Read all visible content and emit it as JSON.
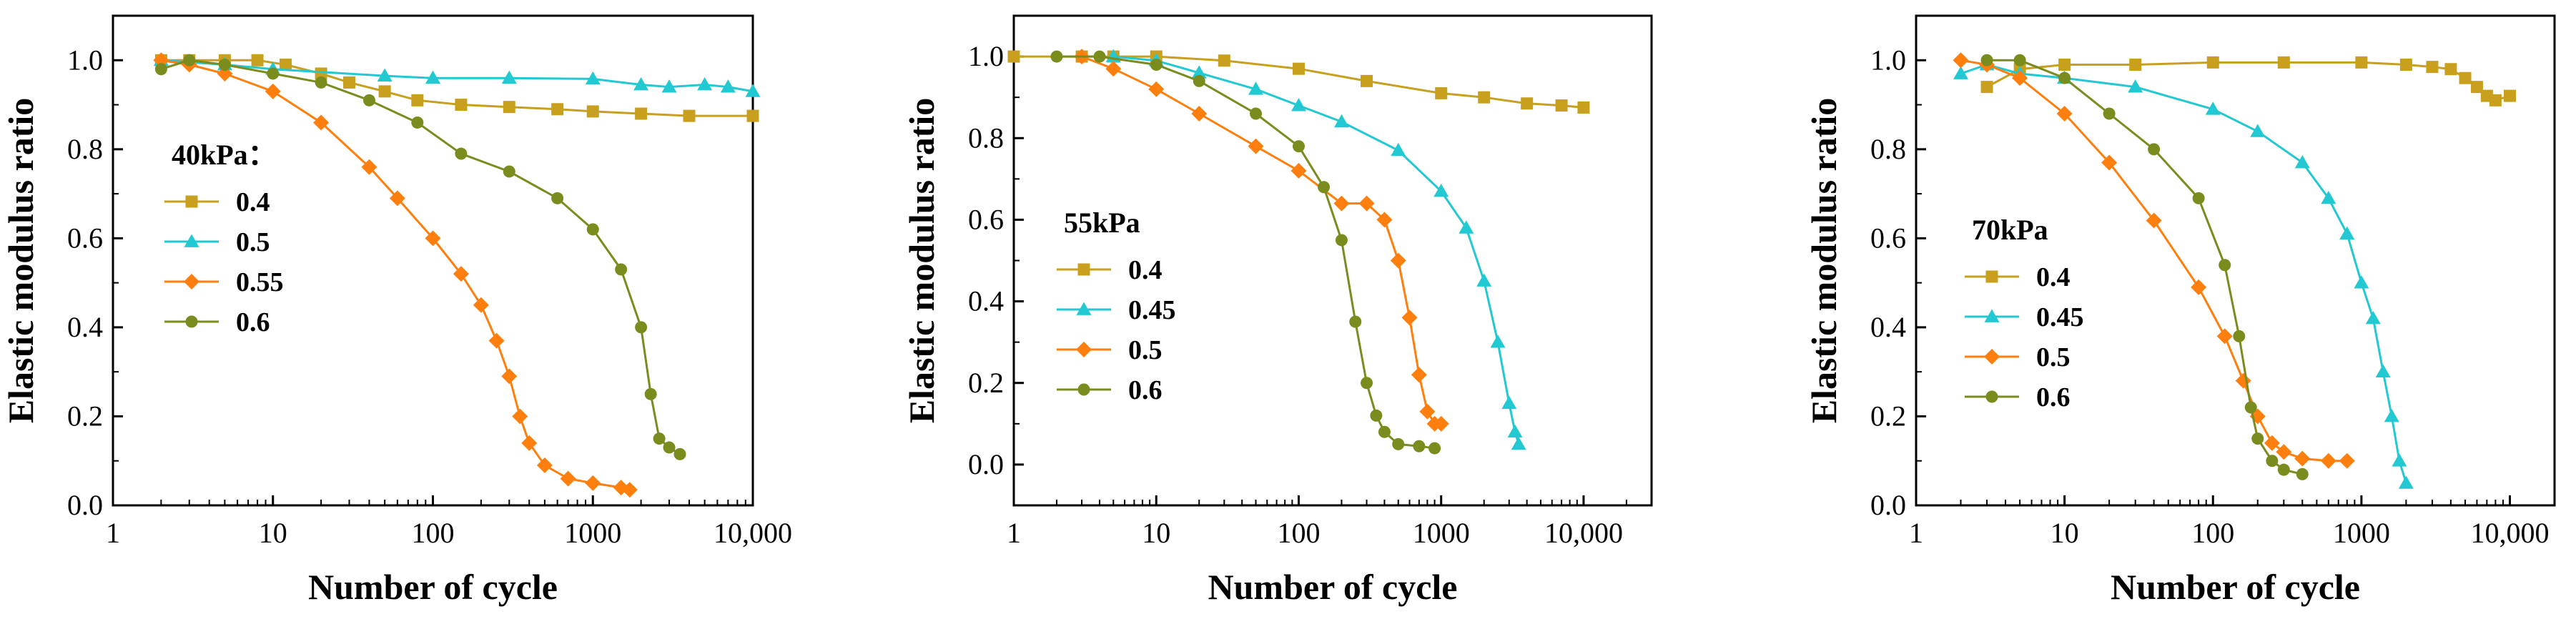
{
  "colors": {
    "0.4": "#c8a01e",
    "0.45": "#22c8d2",
    "0.5": "#ff7f0e",
    "0.55": "#ff7f0e",
    "0.6": "#7a8c1e"
  },
  "chart_data": [
    {
      "type": "line",
      "panel": "40kPa",
      "legend_title": "40kPa：",
      "xlabel": "Number of cycle",
      "ylabel": "Elastic modulus ratio",
      "xscale": "log",
      "xlim": [
        1,
        10000
      ],
      "ylim": [
        0.0,
        1.1
      ],
      "xticks": [
        1,
        10,
        100,
        1000,
        10000
      ],
      "xtick_labels": [
        "1",
        "10",
        "100",
        "1000",
        "10,000"
      ],
      "yticks": [
        0.0,
        0.2,
        0.4,
        0.6,
        0.8,
        1.0
      ],
      "ytick_labels": [
        "0.0",
        "0.2",
        "0.4",
        "0.6",
        "0.8",
        "1.0"
      ],
      "legend_position": "middle-left",
      "series": [
        {
          "name": "0.4",
          "marker": "square",
          "color": "#c8a01e",
          "x": [
            2,
            3,
            5,
            8,
            12,
            20,
            30,
            50,
            80,
            150,
            300,
            600,
            1000,
            2000,
            4000,
            10000
          ],
          "y": [
            1.0,
            1.0,
            1.0,
            1.0,
            0.99,
            0.97,
            0.95,
            0.93,
            0.91,
            0.9,
            0.895,
            0.89,
            0.885,
            0.88,
            0.875,
            0.875
          ]
        },
        {
          "name": "0.5",
          "marker": "triangle",
          "color": "#22c8d2",
          "x": [
            2,
            5,
            10,
            50,
            100,
            300,
            1000,
            2000,
            3000,
            5000,
            7000,
            10000
          ],
          "y": [
            1.0,
            0.99,
            0.98,
            0.965,
            0.96,
            0.96,
            0.958,
            0.945,
            0.94,
            0.945,
            0.94,
            0.93
          ]
        },
        {
          "name": "0.55",
          "marker": "diamond",
          "color": "#ff7f0e",
          "x": [
            2,
            3,
            5,
            10,
            20,
            40,
            60,
            100,
            150,
            200,
            250,
            300,
            350,
            400,
            500,
            700,
            1000,
            1500,
            1700
          ],
          "y": [
            1.0,
            0.99,
            0.97,
            0.93,
            0.86,
            0.76,
            0.69,
            0.6,
            0.52,
            0.45,
            0.37,
            0.29,
            0.2,
            0.14,
            0.09,
            0.06,
            0.05,
            0.04,
            0.035
          ]
        },
        {
          "name": "0.6",
          "marker": "circle",
          "color": "#7a8c1e",
          "x": [
            2,
            3,
            5,
            10,
            20,
            40,
            80,
            150,
            300,
            600,
            1000,
            1500,
            2000,
            2300,
            2600,
            3000,
            3500
          ],
          "y": [
            0.98,
            1.0,
            0.99,
            0.97,
            0.95,
            0.91,
            0.86,
            0.79,
            0.75,
            0.69,
            0.62,
            0.53,
            0.4,
            0.25,
            0.15,
            0.13,
            0.115
          ]
        }
      ]
    },
    {
      "type": "line",
      "panel": "55kPa",
      "legend_title": "55kPa",
      "xlabel": "Number of cycle",
      "ylabel": "Elastic modulus ratio",
      "xscale": "log",
      "xlim": [
        1,
        30000
      ],
      "ylim": [
        -0.1,
        1.1
      ],
      "xticks": [
        1,
        10,
        100,
        1000,
        10000
      ],
      "xtick_labels": [
        "1",
        "10",
        "100",
        "1000",
        "10,000"
      ],
      "yticks": [
        0.0,
        0.2,
        0.4,
        0.6,
        0.8,
        1.0
      ],
      "ytick_labels": [
        "0.0",
        "0.2",
        "0.4",
        "0.6",
        "0.8",
        "1.0"
      ],
      "legend_position": "lower-left",
      "series": [
        {
          "name": "0.4",
          "marker": "square",
          "color": "#c8a01e",
          "x": [
            1,
            3,
            5,
            10,
            30,
            100,
            300,
            1000,
            2000,
            4000,
            7000,
            10000
          ],
          "y": [
            1.0,
            1.0,
            1.0,
            1.0,
            0.99,
            0.97,
            0.94,
            0.91,
            0.9,
            0.885,
            0.88,
            0.875
          ]
        },
        {
          "name": "0.45",
          "marker": "triangle",
          "color": "#22c8d2",
          "x": [
            5,
            10,
            20,
            50,
            100,
            200,
            500,
            1000,
            1500,
            2000,
            2500,
            3000,
            3300,
            3500
          ],
          "y": [
            1.0,
            0.99,
            0.96,
            0.92,
            0.88,
            0.84,
            0.77,
            0.67,
            0.58,
            0.45,
            0.3,
            0.15,
            0.08,
            0.05
          ]
        },
        {
          "name": "0.5",
          "marker": "diamond",
          "color": "#ff7f0e",
          "x": [
            3,
            5,
            10,
            20,
            50,
            100,
            200,
            300,
            400,
            500,
            600,
            700,
            800,
            900,
            1000
          ],
          "y": [
            1.0,
            0.97,
            0.92,
            0.86,
            0.78,
            0.72,
            0.64,
            0.64,
            0.6,
            0.5,
            0.36,
            0.22,
            0.13,
            0.1,
            0.1
          ]
        },
        {
          "name": "0.6",
          "marker": "circle",
          "color": "#7a8c1e",
          "x": [
            2,
            4,
            10,
            20,
            50,
            100,
            150,
            200,
            250,
            300,
            350,
            400,
            500,
            700,
            900
          ],
          "y": [
            1.0,
            1.0,
            0.98,
            0.94,
            0.86,
            0.78,
            0.68,
            0.55,
            0.35,
            0.2,
            0.12,
            0.08,
            0.05,
            0.045,
            0.04
          ]
        }
      ]
    },
    {
      "type": "line",
      "panel": "70kPa",
      "legend_title": "70kPa",
      "xlabel": "Number of cycle",
      "ylabel": "Elastic modulus ratio",
      "xscale": "log",
      "xlim": [
        1,
        20000
      ],
      "ylim": [
        0.0,
        1.1
      ],
      "xticks": [
        1,
        10,
        100,
        1000,
        10000
      ],
      "xtick_labels": [
        "1",
        "10",
        "100",
        "1000",
        "10,000"
      ],
      "yticks": [
        0.0,
        0.2,
        0.4,
        0.6,
        0.8,
        1.0
      ],
      "ytick_labels": [
        "0.0",
        "0.2",
        "0.4",
        "0.6",
        "0.8",
        "1.0"
      ],
      "legend_position": "lower-left",
      "series": [
        {
          "name": "0.4",
          "marker": "square",
          "color": "#c8a01e",
          "x": [
            3,
            5,
            10,
            30,
            100,
            300,
            1000,
            2000,
            3000,
            4000,
            5000,
            6000,
            7000,
            8000,
            10000
          ],
          "y": [
            0.94,
            0.98,
            0.99,
            0.99,
            0.995,
            0.995,
            0.995,
            0.99,
            0.985,
            0.98,
            0.96,
            0.94,
            0.92,
            0.91,
            0.92
          ]
        },
        {
          "name": "0.45",
          "marker": "triangle",
          "color": "#22c8d2",
          "x": [
            2,
            3,
            5,
            10,
            30,
            100,
            200,
            400,
            600,
            800,
            1000,
            1200,
            1400,
            1600,
            1800,
            2000
          ],
          "y": [
            0.97,
            0.99,
            0.97,
            0.96,
            0.94,
            0.89,
            0.84,
            0.77,
            0.69,
            0.61,
            0.5,
            0.42,
            0.3,
            0.2,
            0.1,
            0.05
          ]
        },
        {
          "name": "0.5",
          "marker": "diamond",
          "color": "#ff7f0e",
          "x": [
            2,
            3,
            5,
            10,
            20,
            40,
            80,
            120,
            160,
            200,
            250,
            300,
            400,
            600,
            800
          ],
          "y": [
            1.0,
            0.99,
            0.96,
            0.88,
            0.77,
            0.64,
            0.49,
            0.38,
            0.28,
            0.2,
            0.14,
            0.12,
            0.105,
            0.1,
            0.1
          ]
        },
        {
          "name": "0.6",
          "marker": "circle",
          "color": "#7a8c1e",
          "x": [
            3,
            5,
            10,
            20,
            40,
            80,
            120,
            150,
            180,
            200,
            250,
            300,
            400
          ],
          "y": [
            1.0,
            1.0,
            0.96,
            0.88,
            0.8,
            0.69,
            0.54,
            0.38,
            0.22,
            0.15,
            0.1,
            0.08,
            0.07
          ]
        }
      ]
    }
  ]
}
